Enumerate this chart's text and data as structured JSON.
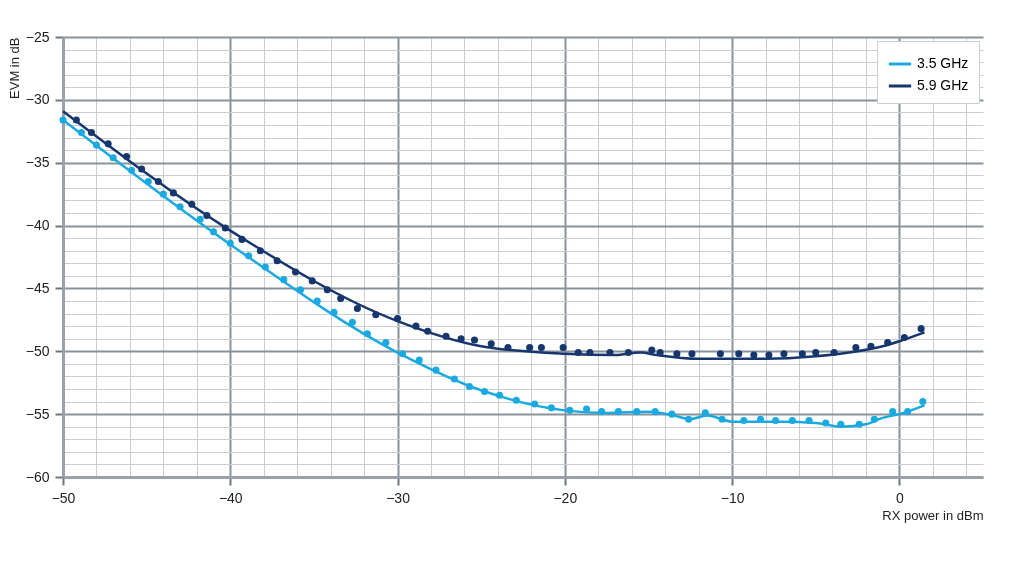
{
  "chart_data": {
    "type": "line",
    "xlabel": "RX power in dBm",
    "ylabel": "EVM in dB",
    "xlim": [
      -50,
      5
    ],
    "ylim": [
      -60,
      -25
    ],
    "xticks": [
      -50,
      {
        "value": -48,
        "label": null
      },
      {
        "value": -46,
        "label": null
      },
      {
        "value": -44,
        "label": null
      },
      {
        "value": -42,
        "label": null
      },
      -40,
      {
        "value": -38,
        "label": null
      },
      {
        "value": -36,
        "label": null
      },
      {
        "value": -34,
        "label": null
      },
      {
        "value": -32,
        "label": null
      },
      -30,
      {
        "value": -28,
        "label": null
      },
      {
        "value": -26,
        "label": null
      },
      {
        "value": -24,
        "label": null
      },
      {
        "value": -22,
        "label": null
      },
      -20,
      {
        "value": -18,
        "label": null
      },
      {
        "value": -16,
        "label": null
      },
      {
        "value": -14,
        "label": null
      },
      {
        "value": -12,
        "label": null
      },
      -10,
      {
        "value": -8,
        "label": null
      },
      {
        "value": -6,
        "label": null
      },
      {
        "value": -4,
        "label": null
      },
      {
        "value": -2,
        "label": null
      },
      0,
      {
        "value": 2,
        "label": null
      },
      {
        "value": 4,
        "label": null
      }
    ],
    "yticks": [
      -60,
      {
        "value": -59,
        "label": null
      },
      {
        "value": -58,
        "label": null
      },
      {
        "value": -57,
        "label": null
      },
      {
        "value": -56,
        "label": null
      },
      -55,
      {
        "value": -54,
        "label": null
      },
      {
        "value": -53,
        "label": null
      },
      {
        "value": -52,
        "label": null
      },
      {
        "value": -51,
        "label": null
      },
      -50,
      {
        "value": -49,
        "label": null
      },
      {
        "value": -48,
        "label": null
      },
      {
        "value": -47,
        "label": null
      },
      {
        "value": -46,
        "label": null
      },
      -45,
      {
        "value": -44,
        "label": null
      },
      {
        "value": -43,
        "label": null
      },
      {
        "value": -42,
        "label": null
      },
      {
        "value": -41,
        "label": null
      },
      -40,
      {
        "value": -39,
        "label": null
      },
      {
        "value": -38,
        "label": null
      },
      {
        "value": -37,
        "label": null
      },
      {
        "value": -36,
        "label": null
      },
      -35,
      {
        "value": -34,
        "label": null
      },
      {
        "value": -33,
        "label": null
      },
      {
        "value": -32,
        "label": null
      },
      {
        "value": -31,
        "label": null
      },
      -30,
      {
        "value": -29,
        "label": null
      },
      {
        "value": -28,
        "label": null
      },
      {
        "value": -27,
        "label": null
      },
      {
        "value": -26,
        "label": null
      },
      -25
    ],
    "grid": true,
    "legend": "top right",
    "series": [
      {
        "name": "3.5 GHz",
        "color": "#1ba9e1",
        "x": [
          -50,
          -40,
          -30,
          -25,
          -20,
          -17.5,
          -15,
          -13.5,
          -12.5,
          -11.5,
          -10,
          -7,
          -5,
          -3.5,
          -2,
          -1,
          0,
          1.5
        ],
        "values": [
          -31.6,
          -41.5,
          -50.1,
          -53.1,
          -54.7,
          -54.9,
          -54.8,
          -55.1,
          -55.4,
          -55.1,
          -55.6,
          -55.6,
          -55.7,
          -56.0,
          -55.8,
          -55.3,
          -55.0,
          -54.3
        ]
      },
      {
        "name": "5.9 GHz",
        "color": "#17366e",
        "x": [
          -50,
          -40,
          -30,
          -25,
          -20,
          -17,
          -15.5,
          -14.5,
          -12,
          -10,
          -8,
          -5,
          -3,
          -1,
          0,
          1.5
        ],
        "values": [
          -30.9,
          -40.4,
          -47.6,
          -49.6,
          -50.2,
          -50.3,
          -50.1,
          -50.3,
          -50.6,
          -50.6,
          -50.6,
          -50.4,
          -50.1,
          -49.6,
          -49.2,
          -48.5
        ]
      },
      {
        "type": "scatter",
        "color": "#1ba9e1",
        "x": [
          -50,
          -48.9,
          -48.0,
          -47.0,
          -45.9,
          -44.9,
          -44.0,
          -43.0,
          -41.8,
          -41.0,
          -40.0,
          -38.9,
          -37.9,
          -36.8,
          -35.8,
          -34.8,
          -33.8,
          -32.7,
          -31.8,
          -30.7,
          -29.7,
          -28.7,
          -27.7,
          -26.6,
          -25.7,
          -24.8,
          -23.9,
          -22.9,
          -21.8,
          -20.8,
          -19.7,
          -18.7,
          -17.8,
          -16.8,
          -15.7,
          -14.6,
          -13.6,
          -12.6,
          -11.6,
          -10.6,
          -9.3,
          -8.3,
          -7.4,
          -6.4,
          -5.4,
          -4.4,
          -3.5,
          -2.4,
          -1.5,
          -0.4,
          0.5,
          1.4
        ],
        "values": [
          -31.6,
          -32.6,
          -33.6,
          -34.6,
          -35.6,
          -36.5,
          -37.5,
          -38.5,
          -39.5,
          -40.5,
          -41.4,
          -42.4,
          -43.3,
          -44.3,
          -45.1,
          -46.0,
          -46.9,
          -47.7,
          -48.6,
          -49.3,
          -50.2,
          -50.7,
          -51.5,
          -52.2,
          -52.8,
          -53.2,
          -53.5,
          -53.9,
          -54.2,
          -54.5,
          -54.7,
          -54.6,
          -54.8,
          -54.8,
          -54.8,
          -54.8,
          -55.0,
          -55.4,
          -54.9,
          -55.4,
          -55.5,
          -55.4,
          -55.5,
          -55.5,
          -55.5,
          -55.7,
          -55.8,
          -55.8,
          -55.4,
          -54.8,
          -54.8,
          -54.0
        ]
      },
      {
        "type": "scatter",
        "color": "#17366e",
        "x": [
          -49.2,
          -48.3,
          -47.3,
          -46.2,
          -45.3,
          -44.3,
          -43.4,
          -42.3,
          -41.4,
          -40.3,
          -39.3,
          -38.2,
          -37.2,
          -36.1,
          -35.1,
          -34.2,
          -33.4,
          -32.4,
          -31.3,
          -30.0,
          -28.9,
          -28.2,
          -27.1,
          -26.2,
          -25.4,
          -24.4,
          -23.4,
          -22.1,
          -21.4,
          -20.1,
          -19.2,
          -18.5,
          -17.3,
          -16.2,
          -14.8,
          -14.3,
          -13.3,
          -12.4,
          -10.7,
          -9.6,
          -8.7,
          -7.8,
          -6.9,
          -5.8,
          -5.0,
          -3.9,
          -2.6,
          -1.7,
          -0.7,
          0.3,
          1.3
        ],
        "values": [
          -31.6,
          -32.6,
          -33.5,
          -34.5,
          -35.5,
          -36.5,
          -37.4,
          -38.3,
          -39.2,
          -40.2,
          -41.1,
          -42.0,
          -42.8,
          -43.7,
          -44.4,
          -45.1,
          -45.8,
          -46.6,
          -47.1,
          -47.4,
          -48.0,
          -48.4,
          -48.8,
          -49.0,
          -49.1,
          -49.4,
          -49.7,
          -49.7,
          -49.7,
          -49.7,
          -50.1,
          -50.1,
          -50.1,
          -50.1,
          -49.9,
          -50.1,
          -50.2,
          -50.2,
          -50.2,
          -50.2,
          -50.3,
          -50.3,
          -50.2,
          -50.2,
          -50.1,
          -50.1,
          -49.7,
          -49.6,
          -49.3,
          -48.9,
          -48.2
        ]
      }
    ]
  }
}
